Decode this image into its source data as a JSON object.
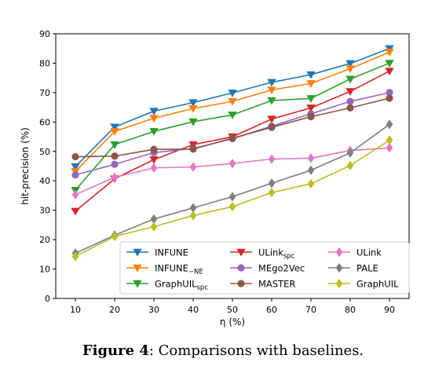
{
  "chart_data": {
    "type": "line",
    "xlabel": "η (%)",
    "ylabel": "hit-precision (%)",
    "x": [
      10,
      20,
      30,
      40,
      50,
      60,
      70,
      80,
      90
    ],
    "xlim": [
      5,
      95
    ],
    "ylim": [
      0,
      90
    ],
    "xticks": [
      10,
      20,
      30,
      40,
      50,
      60,
      70,
      80,
      90
    ],
    "yticks": [
      0,
      10,
      20,
      30,
      40,
      50,
      60,
      70,
      80,
      90
    ],
    "grid": false,
    "legend_position": "lower-center",
    "series": [
      {
        "name": "INFUNE",
        "sub": "",
        "color": "#1f77b4",
        "marker": "tri-down",
        "values": [
          44.8,
          58.3,
          63.7,
          66.6,
          69.9,
          73.5,
          76.1,
          79.9,
          85.0
        ]
      },
      {
        "name": "INFUNE",
        "sub": "−NE",
        "color": "#ff7f0e",
        "marker": "tri-down",
        "values": [
          43.2,
          56.8,
          61.3,
          64.6,
          67.0,
          70.9,
          73.1,
          78.1,
          83.8
        ]
      },
      {
        "name": "GraphUIL",
        "sub": "spc",
        "color": "#2ca02c",
        "marker": "tri-down",
        "values": [
          36.8,
          52.3,
          56.8,
          60.1,
          62.4,
          67.3,
          68.0,
          74.6,
          80.0
        ]
      },
      {
        "name": "ULink",
        "sub": "spc",
        "color": "#d62728",
        "marker": "tri-down",
        "values": [
          29.7,
          40.7,
          47.2,
          52.3,
          55.0,
          61.0,
          64.8,
          70.4,
          77.3
        ]
      },
      {
        "name": "MEgo2Vec",
        "sub": "",
        "color": "#9467bd",
        "marker": "circle",
        "values": [
          42.0,
          45.6,
          49.6,
          51.0,
          54.3,
          58.6,
          62.8,
          67.0,
          70.0
        ]
      },
      {
        "name": "MASTER",
        "sub": "",
        "color": "#8c564b",
        "marker": "circle",
        "values": [
          48.2,
          48.4,
          50.7,
          50.8,
          54.5,
          58.2,
          61.8,
          64.8,
          68.1
        ]
      },
      {
        "name": "ULink",
        "sub": "",
        "color": "#e377c2",
        "marker": "diamond",
        "values": [
          35.3,
          41.2,
          44.4,
          44.7,
          45.9,
          47.4,
          47.7,
          50.3,
          51.2
        ]
      },
      {
        "name": "PALE",
        "sub": "",
        "color": "#7f7f7f",
        "marker": "diamond",
        "values": [
          15.4,
          21.5,
          27.0,
          30.8,
          34.6,
          39.2,
          43.6,
          49.5,
          59.2
        ]
      },
      {
        "name": "GraphUIL",
        "sub": "",
        "color": "#bcbd22",
        "marker": "diamond",
        "values": [
          14.3,
          21.1,
          24.4,
          28.2,
          31.2,
          36.0,
          39.0,
          45.2,
          53.8
        ]
      }
    ]
  },
  "caption": {
    "label": "Figure 4",
    "text": ": Comparisons with baselines."
  }
}
